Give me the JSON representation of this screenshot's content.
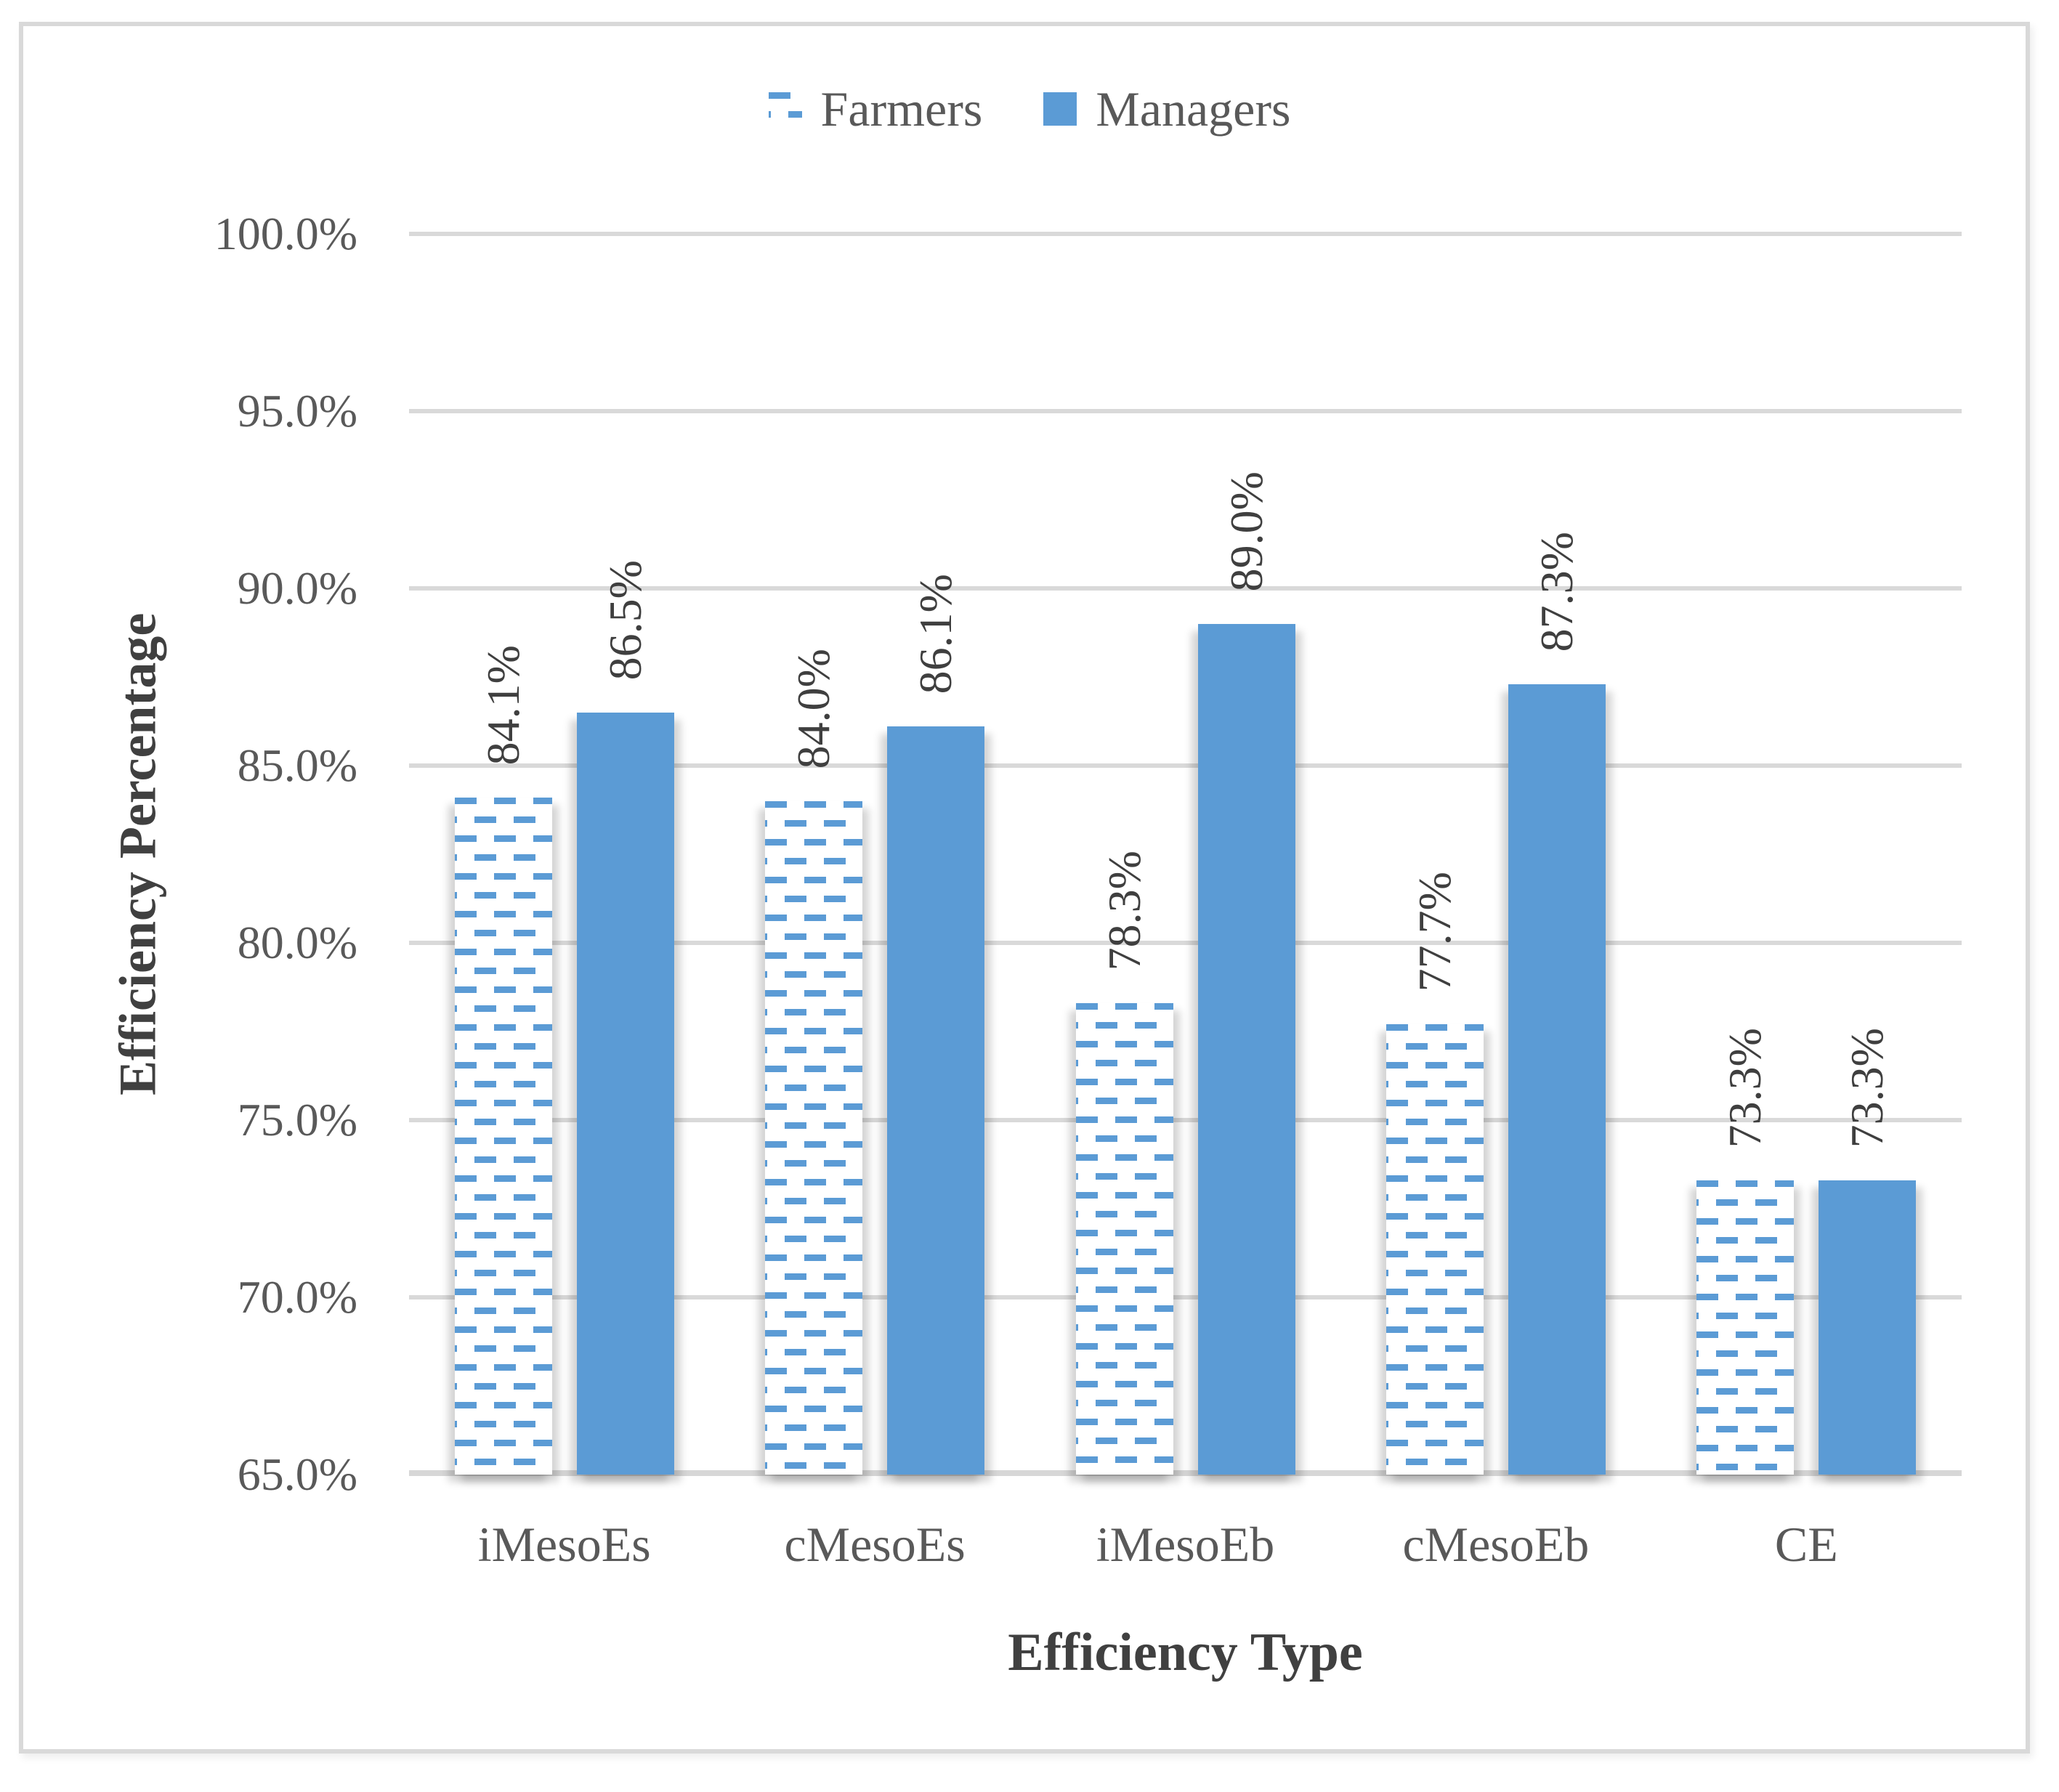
{
  "chart_data": {
    "type": "bar",
    "categories": [
      "iMesoEs",
      "cMesoEs",
      "iMesoEb",
      "cMesoEb",
      "CE"
    ],
    "series": [
      {
        "name": "Farmers",
        "style": "dashed-pattern",
        "values": [
          84.1,
          84.0,
          78.3,
          77.7,
          73.3
        ]
      },
      {
        "name": "Managers",
        "style": "solid",
        "values": [
          86.5,
          86.1,
          89.0,
          87.3,
          73.3
        ]
      }
    ],
    "value_labels": [
      [
        "84.1%",
        "84.0%",
        "78.3%",
        "77.7%",
        "73.3%"
      ],
      [
        "86.5%",
        "86.1%",
        "89.0%",
        "87.3%",
        "73.3%"
      ]
    ],
    "xlabel": "Efficiency Type",
    "ylabel": "Efficiency Percentage",
    "ylim": [
      65,
      100
    ],
    "yticks": [
      {
        "value": 65,
        "label": "65.0%"
      },
      {
        "value": 70,
        "label": "70.0%"
      },
      {
        "value": 75,
        "label": "75.0%"
      },
      {
        "value": 80,
        "label": "80.0%"
      },
      {
        "value": 85,
        "label": "85.0%"
      },
      {
        "value": 90,
        "label": "90.0%"
      },
      {
        "value": 95,
        "label": "95.0%"
      },
      {
        "value": 100,
        "label": "100.0%"
      }
    ],
    "grid": true,
    "legend_position": "top-center",
    "colors": {
      "bar_blue": "#5B9BD5",
      "gridline": "#D9D9D9",
      "axis_line": "#D7D7D7",
      "tick_text": "#595959",
      "title_text": "#404040",
      "value_text": "#3F3F3F",
      "frame_border": "#D9D9D9"
    }
  }
}
